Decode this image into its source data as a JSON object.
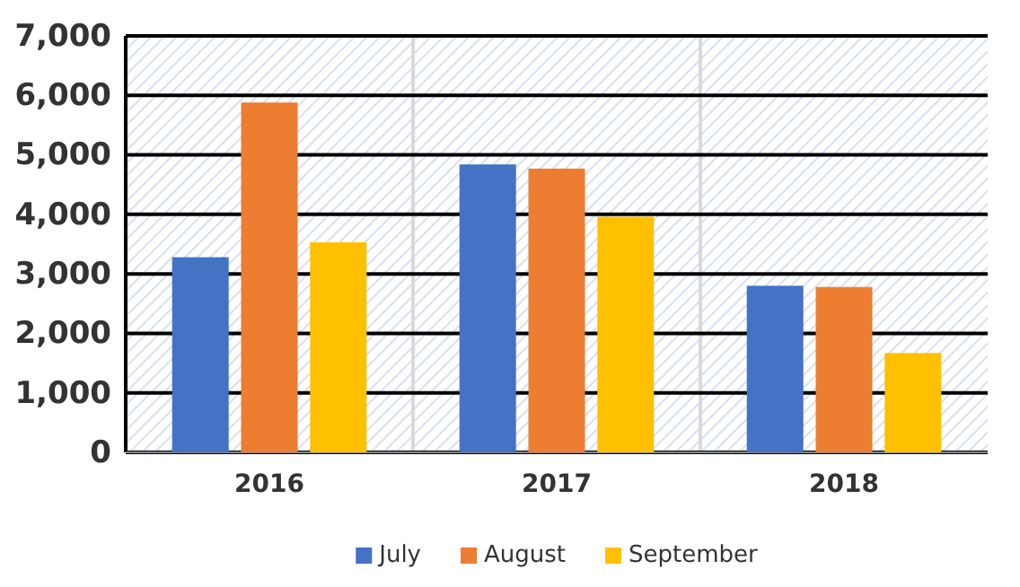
{
  "chart_data": {
    "type": "bar",
    "categories": [
      "2016",
      "2017",
      "2018"
    ],
    "series": [
      {
        "name": "July",
        "color": "#4472c4",
        "values": [
          3280,
          4840,
          2800
        ]
      },
      {
        "name": "August",
        "color": "#ed7d31",
        "values": [
          5880,
          4770,
          2780
        ]
      },
      {
        "name": "September",
        "color": "#ffc000",
        "values": [
          3530,
          3960,
          1670
        ]
      }
    ],
    "ylim": [
      0,
      7000
    ],
    "yticks": [
      {
        "value": 0,
        "label": "0"
      },
      {
        "value": 1000,
        "label": "1,000"
      },
      {
        "value": 2000,
        "label": "2,000"
      },
      {
        "value": 3000,
        "label": "3,000"
      },
      {
        "value": 4000,
        "label": "4,000"
      },
      {
        "value": 5000,
        "label": "5,000"
      },
      {
        "value": 6000,
        "label": "6,000"
      },
      {
        "value": 7000,
        "label": "7,000"
      }
    ],
    "grid": "y",
    "legend": "bottom"
  }
}
